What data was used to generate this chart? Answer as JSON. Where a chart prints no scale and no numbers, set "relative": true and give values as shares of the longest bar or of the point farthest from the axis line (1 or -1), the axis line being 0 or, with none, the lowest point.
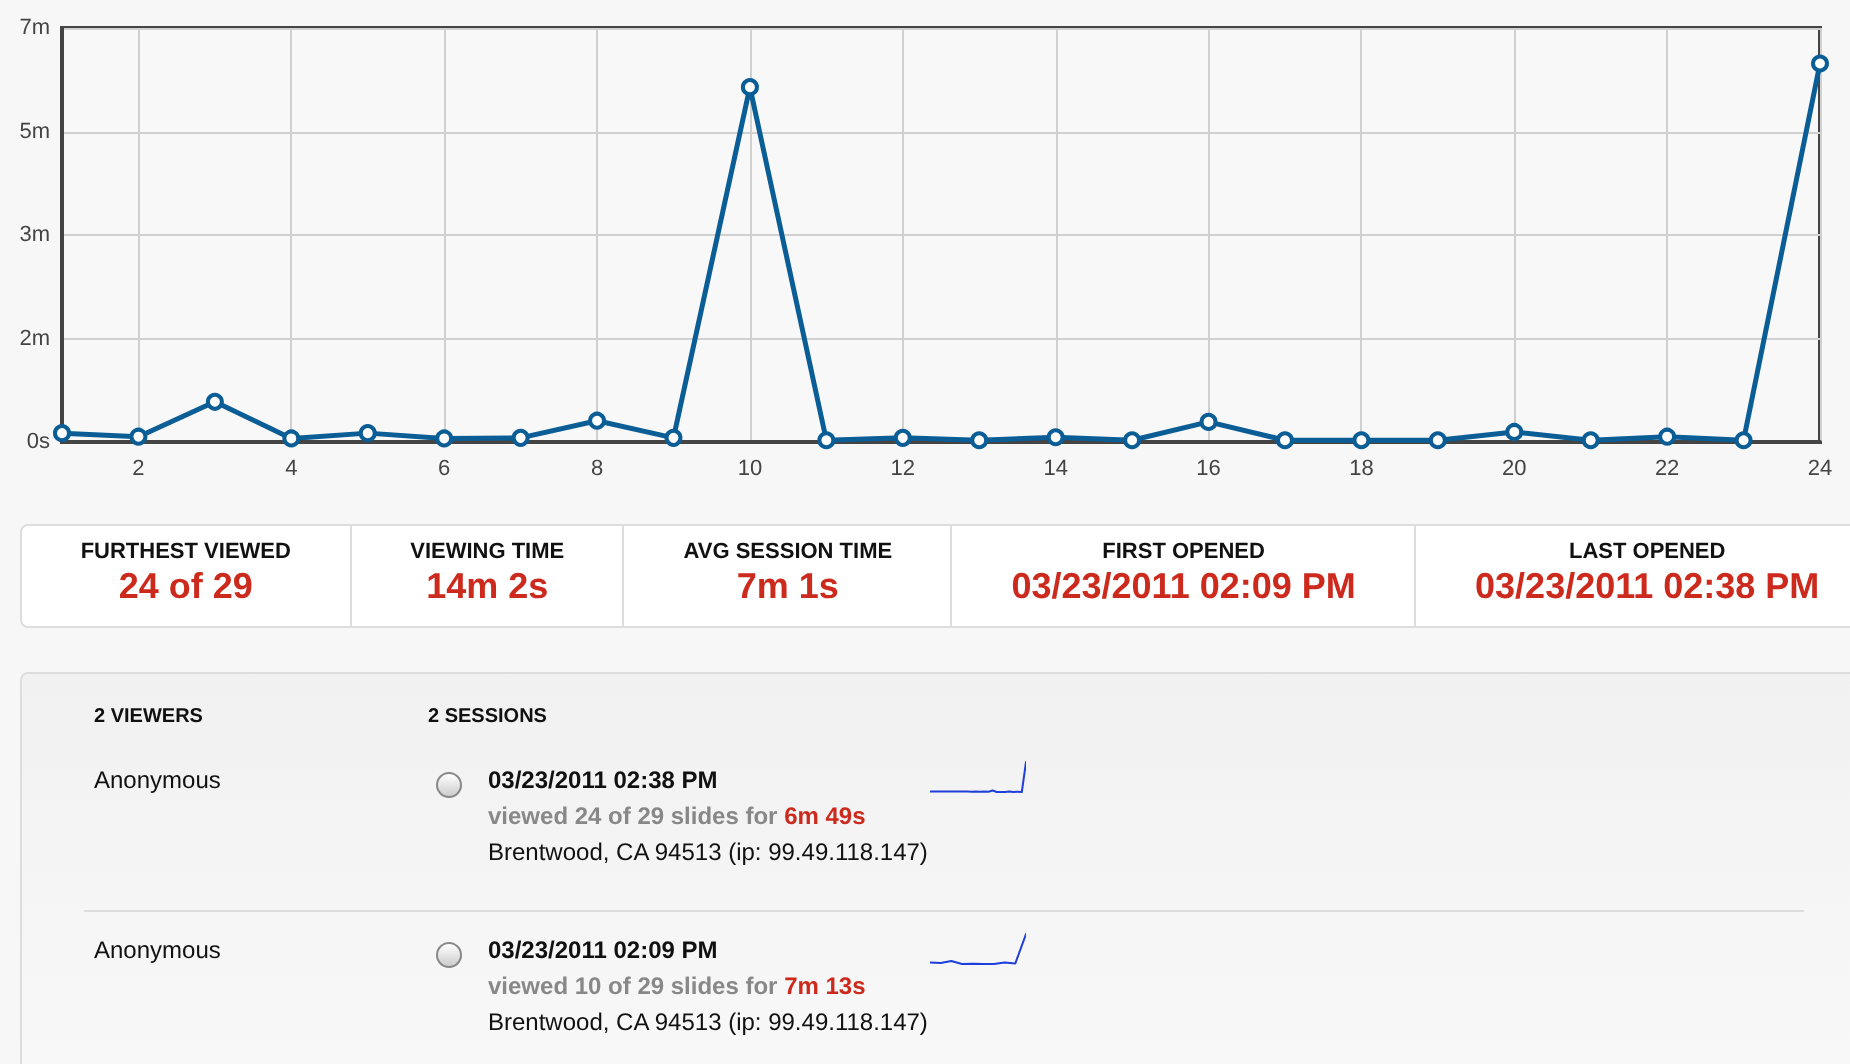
{
  "chart_data": [
    {
      "type": "line",
      "x": [
        1,
        2,
        3,
        4,
        5,
        6,
        7,
        8,
        9,
        10,
        11,
        12,
        13,
        14,
        15,
        16,
        17,
        18,
        19,
        20,
        21,
        22,
        23,
        24
      ],
      "values": [
        0.15,
        0.09,
        0.68,
        0.06,
        0.15,
        0.06,
        0.07,
        0.36,
        0.07,
        6.0,
        0.03,
        0.07,
        0.03,
        0.08,
        0.03,
        0.34,
        0.03,
        0.03,
        0.03,
        0.17,
        0.03,
        0.09,
        0.03,
        6.4
      ],
      "color": "#0b5d96",
      "xlim": [
        1,
        24
      ],
      "xticks": [
        2,
        4,
        6,
        8,
        10,
        12,
        14,
        16,
        18,
        20,
        22,
        24
      ],
      "ylim": [
        0,
        7
      ],
      "yticks": [
        {
          "value": 0,
          "label": "0s"
        },
        {
          "value": 1.75,
          "label": "2m"
        },
        {
          "value": 3.5,
          "label": "3m"
        },
        {
          "value": 5.25,
          "label": "5m"
        },
        {
          "value": 7,
          "label": "7m"
        }
      ],
      "grid": true,
      "marker": "circle"
    },
    {
      "type": "other",
      "annotations": [
        "FURTHEST VIEWED",
        "24 of 29",
        "VIEWING TIME",
        "14m 2s",
        "AVG SESSION TIME",
        "7m 1s",
        "FIRST OPENED",
        "03/23/2011 02:09 PM",
        "LAST OPENED",
        "03/23/2011 02:38 PM"
      ]
    },
    {
      "type": "other",
      "annotations": [
        "2 VIEWERS",
        "2 SESSIONS",
        "Anonymous",
        "03/23/2011 02:38 PM",
        "viewed 24 of 29 slides for",
        "6m 49s",
        "Brentwood, CA 94513 (ip: 99.49.118.147)",
        "Anonymous",
        "03/23/2011 02:09 PM",
        "viewed 10 of 29 slides for",
        "7m 13s",
        "Brentwood, CA 94513 (ip: 99.49.118.147)"
      ]
    },
    {
      "type": "line",
      "relative": true,
      "categories": [
        null,
        null,
        null,
        null,
        null,
        null,
        null,
        null,
        null,
        null,
        null,
        null,
        null,
        null,
        null,
        null,
        null,
        null,
        null,
        null,
        null,
        null,
        null,
        null
      ],
      "values": [
        0.02,
        0.02,
        0.02,
        0.02,
        0.02,
        0.02,
        0.02,
        0.02,
        0.02,
        0.02,
        0.01,
        0.02,
        0.01,
        0.02,
        0.01,
        0.05,
        0,
        0,
        0,
        0.02,
        0,
        0.01,
        0,
        1
      ],
      "color": "#1f3fdb"
    },
    {
      "type": "line",
      "relative": true,
      "categories": [
        null,
        null,
        null,
        null,
        null,
        null,
        null,
        null,
        null,
        null
      ],
      "values": [
        0.05,
        0.03,
        0.1,
        0,
        0.01,
        0,
        0,
        0.05,
        0.02,
        1
      ],
      "color": "#1f3fdb"
    }
  ]
}
